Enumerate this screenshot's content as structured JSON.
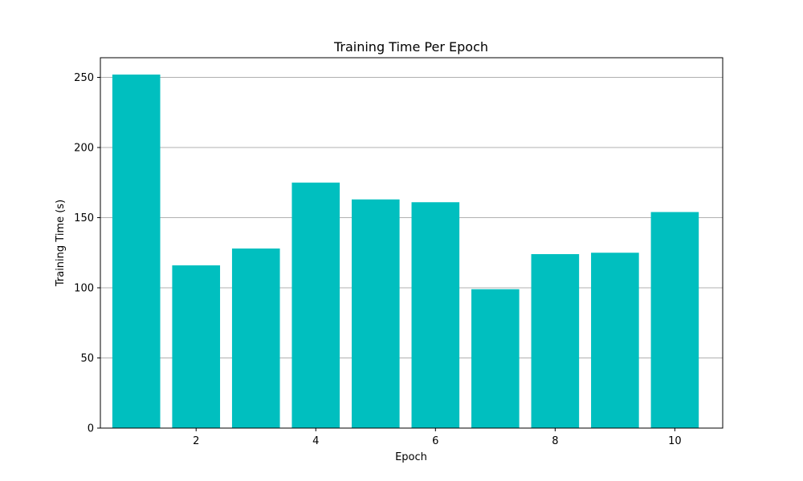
{
  "chart_data": {
    "type": "bar",
    "title": "Training Time Per Epoch",
    "xlabel": "Epoch",
    "ylabel": "Training Time (s)",
    "x": [
      1,
      2,
      3,
      4,
      5,
      6,
      7,
      8,
      9,
      10
    ],
    "values": [
      252,
      116,
      128,
      175,
      163,
      161,
      99,
      124,
      125,
      154
    ],
    "xticks": [
      2,
      4,
      6,
      8,
      10
    ],
    "yticks": [
      0,
      50,
      100,
      150,
      200,
      250
    ],
    "xlim": [
      0.4,
      10.8
    ],
    "ylim": [
      0,
      264
    ],
    "grid": "y",
    "bar_color": "#00bfbf",
    "grid_color": "#b0b0b0"
  }
}
